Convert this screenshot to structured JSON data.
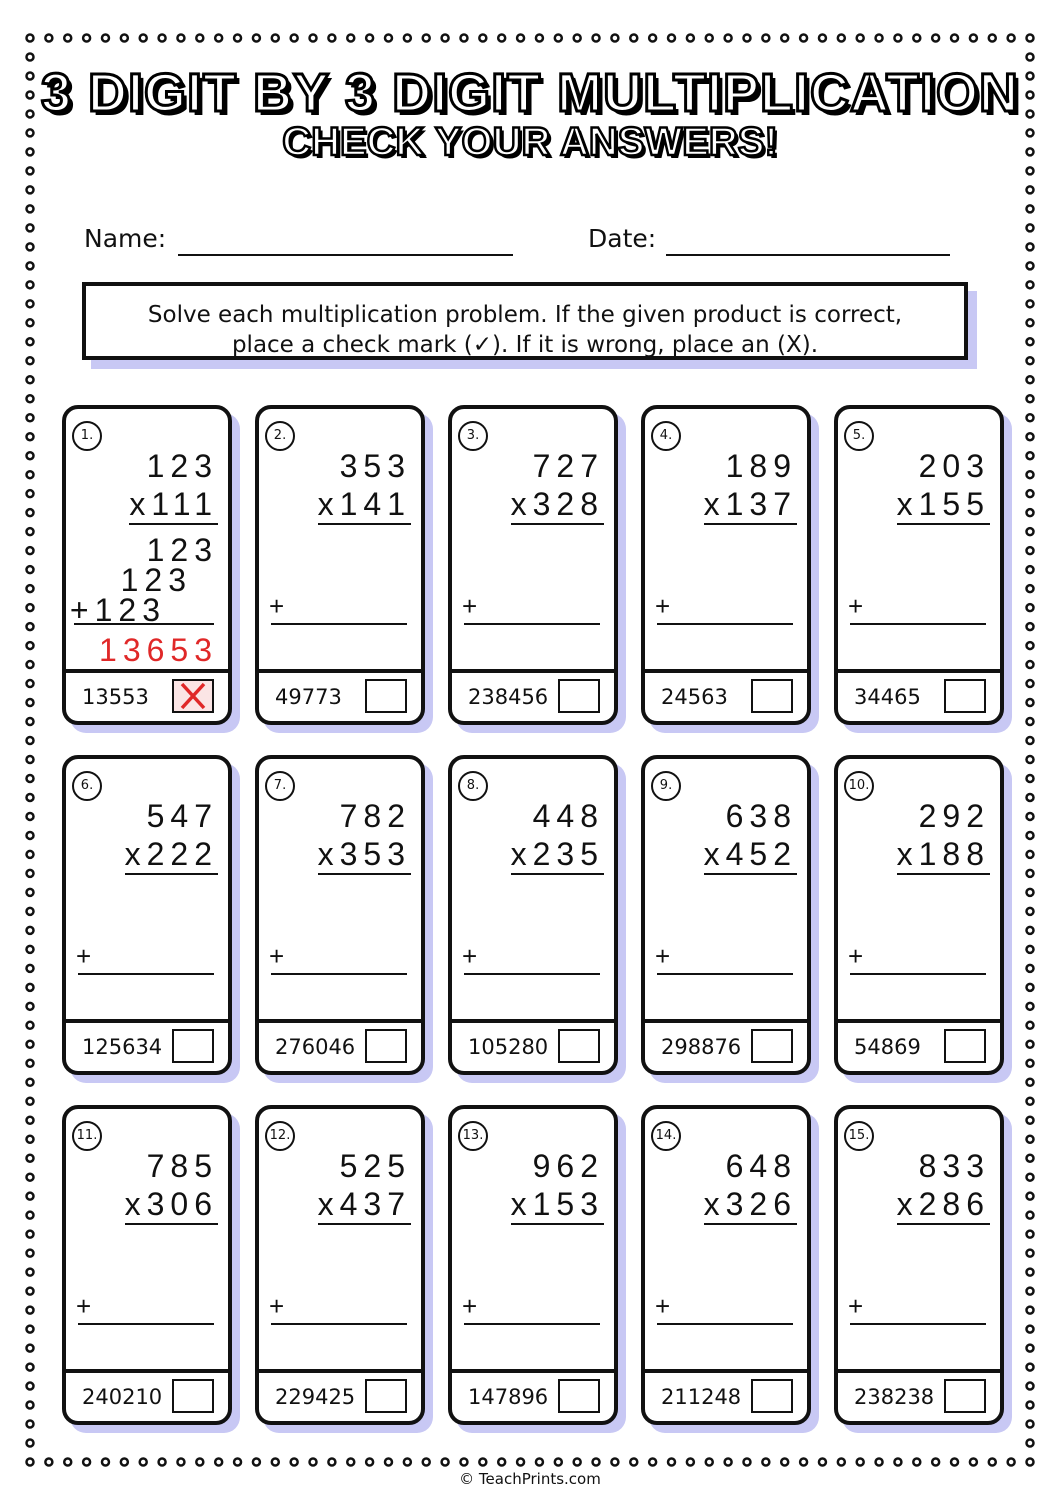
{
  "header": {
    "title": "3 DIGIT BY 3 DIGIT MULTIPLICATION",
    "subtitle": "CHECK YOUR ANSWERS!"
  },
  "fields": {
    "name": "Name:",
    "date": "Date:"
  },
  "instructions": [
    "Solve each multiplication problem. If the given product is correct,",
    "place a check mark (✓). If it is wrong, place an (X)."
  ],
  "problems": [
    {
      "number": "1.",
      "top": "123",
      "bottom": "x111",
      "given": "13553",
      "work": {
        "partials": [
          "123",
          "123",
          "+123"
        ],
        "answer": "13653"
      }
    },
    {
      "number": "2.",
      "top": "353",
      "bottom": "x141",
      "plus": "+",
      "given": "49773"
    },
    {
      "number": "3.",
      "top": "727",
      "bottom": "x328",
      "plus": "+",
      "given": "238456"
    },
    {
      "number": "4.",
      "top": "189",
      "bottom": "x137",
      "plus": "+",
      "given": "24563"
    },
    {
      "number": "5.",
      "top": "203",
      "bottom": "x155",
      "plus": "+",
      "given": "34465"
    },
    {
      "number": "6.",
      "top": "547",
      "bottom": "x222",
      "plus": "+",
      "given": "125634"
    },
    {
      "number": "7.",
      "top": "782",
      "bottom": "x353",
      "plus": "+",
      "given": "276046"
    },
    {
      "number": "8.",
      "top": "448",
      "bottom": "x235",
      "plus": "+",
      "given": "105280"
    },
    {
      "number": "9.",
      "top": "638",
      "bottom": "x452",
      "plus": "+",
      "given": "298876"
    },
    {
      "number": "10.",
      "top": "292",
      "bottom": "x188",
      "plus": "+",
      "given": "54869"
    },
    {
      "number": "11.",
      "top": "785",
      "bottom": "x306",
      "plus": "+",
      "given": "240210"
    },
    {
      "number": "12.",
      "top": "525",
      "bottom": "x437",
      "plus": "+",
      "given": "229425"
    },
    {
      "number": "13.",
      "top": "962",
      "bottom": "x153",
      "plus": "+",
      "given": "147896"
    },
    {
      "number": "14.",
      "top": "648",
      "bottom": "x326",
      "plus": "+",
      "given": "211248"
    },
    {
      "number": "15.",
      "top": "833",
      "bottom": "x286",
      "plus": "+",
      "given": "238238"
    }
  ],
  "footer": "© TeachPrints.com"
}
